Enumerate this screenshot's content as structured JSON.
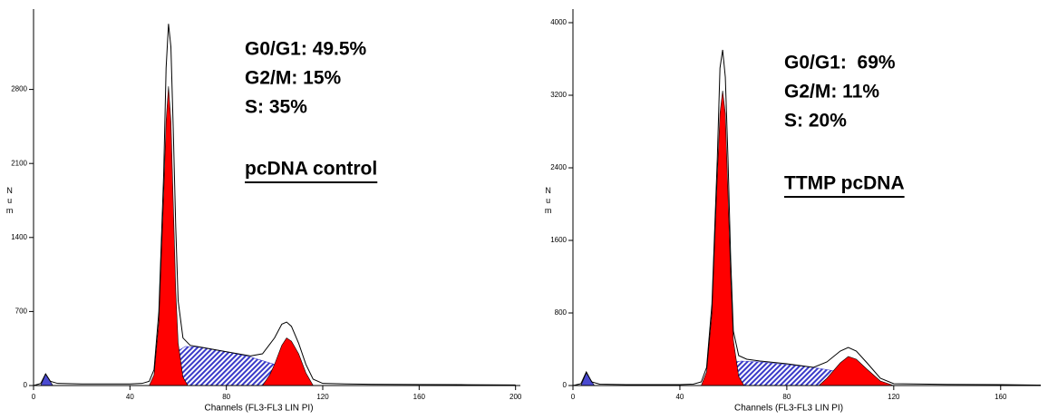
{
  "chart_data": [
    {
      "type": "line",
      "x_label": "Channels (FL3-FL3 LIN PI)",
      "y_label": "Num",
      "annotations": [
        "G0/G1: 49.5%",
        "G2/M: 15%",
        "S: 35%"
      ],
      "sample": "pcDNA control",
      "xlim": [
        0,
        202
      ],
      "xticks": [
        0,
        40,
        80,
        120,
        160,
        200
      ],
      "ylim": [
        0,
        3560
      ],
      "yticks": [
        0,
        700,
        1400,
        2100,
        2800
      ],
      "series": [
        {
          "style": "hatch",
          "color": "#3a3ac8",
          "x": [
            52,
            56,
            60,
            63,
            70,
            80,
            90,
            100,
            105,
            110,
            115
          ],
          "values": [
            0,
            150,
            330,
            370,
            360,
            320,
            270,
            200,
            140,
            60,
            0
          ]
        },
        {
          "style": "fill",
          "color": "#ff0000",
          "x": [
            48,
            50,
            52,
            54,
            55,
            56,
            57,
            58,
            59,
            60,
            62,
            64
          ],
          "values": [
            0,
            100,
            600,
            1800,
            2500,
            2830,
            2500,
            1700,
            900,
            400,
            80,
            0
          ]
        },
        {
          "style": "fill",
          "color": "#ff0000",
          "x": [
            95,
            98,
            100,
            103,
            105,
            107,
            110,
            113,
            116
          ],
          "values": [
            0,
            100,
            200,
            380,
            450,
            420,
            300,
            120,
            0
          ]
        },
        {
          "style": "fill",
          "color": "#4a4ad0",
          "x": [
            3,
            5,
            8
          ],
          "values": [
            0,
            110,
            0
          ]
        },
        {
          "style": "line",
          "color": "#000000",
          "x": [
            0,
            3,
            5,
            7,
            10,
            20,
            30,
            40,
            45,
            48,
            50,
            52,
            54,
            55,
            56,
            57,
            58,
            59,
            60,
            62,
            65,
            70,
            80,
            90,
            95,
            100,
            103,
            105,
            107,
            110,
            113,
            116,
            120,
            130,
            140,
            160,
            180,
            200
          ],
          "values": [
            0,
            20,
            110,
            40,
            20,
            15,
            15,
            15,
            20,
            40,
            150,
            700,
            2000,
            3000,
            3420,
            3200,
            2400,
            1500,
            800,
            450,
            380,
            360,
            320,
            280,
            300,
            450,
            580,
            600,
            560,
            400,
            200,
            60,
            20,
            15,
            12,
            10,
            8,
            5
          ]
        }
      ]
    },
    {
      "type": "line",
      "x_label": "Channels (FL3-FL3 LIN PI)",
      "y_label": "Num",
      "annotations": [
        "G0/G1:  69%",
        "G2/M: 11%",
        "S: 20%"
      ],
      "sample": "TTMP pcDNA",
      "xlim": [
        0,
        175
      ],
      "xticks": [
        0,
        40,
        80,
        120,
        160
      ],
      "ylim": [
        0,
        4150
      ],
      "yticks": [
        0,
        800,
        1600,
        2400,
        3200,
        4000
      ],
      "series": [
        {
          "style": "hatch",
          "color": "#3a3ac8",
          "x": [
            52,
            56,
            60,
            63,
            70,
            80,
            90,
            100,
            110,
            115
          ],
          "values": [
            0,
            150,
            260,
            270,
            260,
            230,
            200,
            150,
            50,
            0
          ]
        },
        {
          "style": "fill",
          "color": "#ff0000",
          "x": [
            48,
            50,
            52,
            54,
            55,
            56,
            57,
            58,
            59,
            60,
            62,
            64
          ],
          "values": [
            0,
            150,
            800,
            2300,
            3000,
            3250,
            3000,
            2100,
            1200,
            500,
            100,
            0
          ]
        },
        {
          "style": "fill",
          "color": "#ff0000",
          "x": [
            92,
            95,
            100,
            103,
            106,
            110,
            115,
            120
          ],
          "values": [
            0,
            80,
            250,
            320,
            290,
            180,
            50,
            0
          ]
        },
        {
          "style": "fill",
          "color": "#4a4ad0",
          "x": [
            3,
            5,
            8
          ],
          "values": [
            0,
            140,
            0
          ]
        },
        {
          "style": "line",
          "color": "#000000",
          "x": [
            0,
            3,
            5,
            7,
            10,
            20,
            30,
            40,
            45,
            48,
            50,
            52,
            54,
            55,
            56,
            57,
            58,
            59,
            60,
            62,
            65,
            70,
            80,
            90,
            95,
            100,
            103,
            106,
            110,
            115,
            120,
            140,
            160,
            175
          ],
          "values": [
            0,
            20,
            150,
            40,
            15,
            10,
            10,
            10,
            15,
            40,
            200,
            900,
            2500,
            3500,
            3700,
            3400,
            2500,
            1400,
            600,
            330,
            290,
            270,
            240,
            200,
            260,
            380,
            420,
            380,
            250,
            80,
            20,
            12,
            10,
            5
          ]
        }
      ]
    }
  ]
}
